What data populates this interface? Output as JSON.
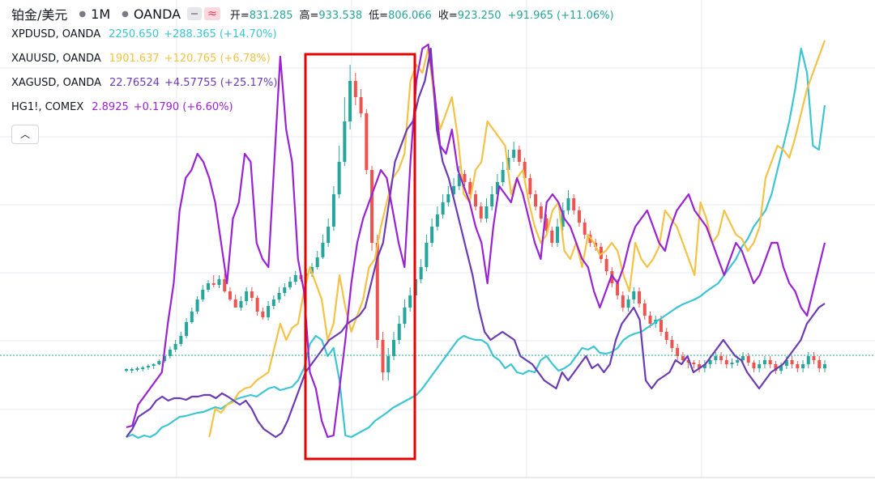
{
  "header": {
    "symbol": "铂金/美元",
    "interval": "1M",
    "exchange": "OANDA",
    "approx_label": "≈",
    "ohlc": [
      {
        "label": "开=",
        "value": "831.285"
      },
      {
        "label": "高=",
        "value": "933.538"
      },
      {
        "label": "低=",
        "value": "806.066"
      },
      {
        "label": "收=",
        "value": "923.250"
      },
      {
        "label": "",
        "value": "+91.965 (+11.06%)"
      }
    ]
  },
  "series_legend": [
    {
      "name": "XPDUSD, OANDA",
      "value": "2250.650",
      "change": "+288.365 (+14.70%)",
      "color": "#3cc5d3"
    },
    {
      "name": "XAUUSD, OANDA",
      "value": "1901.637",
      "change": "+120.765 (+6.78%)",
      "color": "#f4c244"
    },
    {
      "name": "XAGUSD, OANDA",
      "value": "22.76524",
      "change": "+4.57755 (+25.17%)",
      "color": "#6a3bb5"
    },
    {
      "name": "HG1!, COMEX",
      "value": "2.8925",
      "change": "+0.1790 (+6.60%)",
      "color": "#9b22d4"
    }
  ],
  "collapse_icon": "chevron-up-icon",
  "colors": {
    "up": "#26a69a",
    "down": "#ef5350",
    "highlight_box": "#e60000",
    "price_line": "#26a69a",
    "grid": "#e6e9ef"
  },
  "chart_data": {
    "type": "line",
    "title": "铂金/美元 · 1M · OANDA",
    "grid": true,
    "candles_ohlc_series": "铂金/美元",
    "candles": [
      [
        458,
        456,
        460,
        455
      ],
      [
        458,
        456,
        461,
        454
      ],
      [
        456,
        455,
        459,
        453
      ],
      [
        456,
        454,
        459,
        452
      ],
      [
        454,
        452,
        457,
        450
      ],
      [
        452,
        450,
        456,
        449
      ],
      [
        450,
        446,
        451,
        444
      ],
      [
        446,
        440,
        448,
        437
      ],
      [
        440,
        432,
        443,
        428
      ],
      [
        432,
        425,
        435,
        420
      ],
      [
        425,
        415,
        428,
        410
      ],
      [
        415,
        398,
        418,
        393
      ],
      [
        398,
        385,
        400,
        380
      ],
      [
        385,
        370,
        388,
        366
      ],
      [
        370,
        358,
        373,
        352
      ],
      [
        358,
        350,
        361,
        346
      ],
      [
        350,
        352,
        355,
        340
      ],
      [
        352,
        345,
        356,
        340
      ],
      [
        345,
        360,
        362,
        338
      ],
      [
        360,
        370,
        372,
        355
      ],
      [
        370,
        380,
        375,
        364
      ],
      [
        380,
        372,
        384,
        366
      ],
      [
        372,
        360,
        377,
        355
      ],
      [
        360,
        368,
        372,
        355
      ],
      [
        368,
        385,
        390,
        365
      ],
      [
        385,
        392,
        395,
        380
      ],
      [
        392,
        378,
        396,
        372
      ],
      [
        378,
        370,
        382,
        365
      ],
      [
        370,
        362,
        374,
        355
      ],
      [
        362,
        355,
        366,
        350
      ],
      [
        355,
        348,
        358,
        342
      ],
      [
        348,
        340,
        352,
        335
      ],
      [
        340,
        345,
        348,
        338
      ],
      [
        345,
        338,
        350,
        332
      ],
      [
        338,
        330,
        342,
        325
      ],
      [
        330,
        318,
        333,
        310
      ],
      [
        318,
        300,
        320,
        290
      ],
      [
        300,
        280,
        305,
        270
      ],
      [
        280,
        240,
        285,
        230
      ],
      [
        240,
        200,
        245,
        180
      ],
      [
        200,
        150,
        205,
        120
      ],
      [
        150,
        100,
        160,
        80
      ],
      [
        100,
        120,
        130,
        90
      ],
      [
        120,
        140,
        145,
        110
      ],
      [
        140,
        210,
        215,
        135
      ],
      [
        210,
        300,
        310,
        205
      ],
      [
        300,
        420,
        430,
        290
      ],
      [
        420,
        460,
        470,
        410
      ],
      [
        460,
        440,
        470,
        430
      ],
      [
        440,
        420,
        445,
        410
      ],
      [
        420,
        400,
        425,
        390
      ],
      [
        400,
        380,
        405,
        370
      ],
      [
        380,
        365,
        385,
        355
      ],
      [
        365,
        345,
        370,
        335
      ],
      [
        345,
        330,
        350,
        320
      ],
      [
        330,
        300,
        335,
        290
      ],
      [
        300,
        280,
        305,
        270
      ],
      [
        280,
        265,
        285,
        255
      ],
      [
        265,
        250,
        270,
        240
      ],
      [
        250,
        240,
        255,
        230
      ],
      [
        240,
        230,
        245,
        220
      ],
      [
        230,
        215,
        235,
        205
      ],
      [
        215,
        225,
        230,
        210
      ],
      [
        225,
        240,
        245,
        220
      ],
      [
        240,
        255,
        260,
        235
      ],
      [
        255,
        270,
        275,
        250
      ],
      [
        270,
        255,
        275,
        245
      ],
      [
        255,
        240,
        260,
        230
      ],
      [
        240,
        225,
        245,
        215
      ],
      [
        225,
        210,
        230,
        200
      ],
      [
        210,
        195,
        215,
        185
      ],
      [
        195,
        185,
        200,
        175
      ],
      [
        185,
        200,
        205,
        180
      ],
      [
        200,
        220,
        225,
        195
      ],
      [
        220,
        240,
        245,
        215
      ],
      [
        240,
        255,
        260,
        235
      ],
      [
        255,
        270,
        275,
        250
      ],
      [
        270,
        285,
        290,
        265
      ],
      [
        285,
        300,
        305,
        280
      ],
      [
        300,
        280,
        305,
        270
      ],
      [
        280,
        260,
        285,
        250
      ],
      [
        260,
        245,
        265,
        235
      ],
      [
        245,
        260,
        265,
        240
      ],
      [
        260,
        275,
        280,
        255
      ],
      [
        275,
        290,
        295,
        270
      ],
      [
        290,
        300,
        305,
        285
      ],
      [
        300,
        305,
        310,
        295
      ],
      [
        305,
        320,
        325,
        300
      ],
      [
        320,
        335,
        340,
        315
      ],
      [
        335,
        350,
        355,
        330
      ],
      [
        350,
        365,
        370,
        345
      ],
      [
        365,
        380,
        385,
        360
      ],
      [
        380,
        370,
        385,
        365
      ],
      [
        370,
        360,
        375,
        355
      ],
      [
        360,
        375,
        380,
        355
      ],
      [
        375,
        390,
        395,
        370
      ],
      [
        390,
        400,
        405,
        385
      ],
      [
        400,
        395,
        405,
        390
      ],
      [
        395,
        410,
        415,
        390
      ],
      [
        410,
        420,
        425,
        405
      ],
      [
        420,
        430,
        435,
        415
      ],
      [
        430,
        440,
        445,
        425
      ],
      [
        440,
        445,
        450,
        435
      ],
      [
        445,
        448,
        455,
        440
      ],
      [
        448,
        450,
        455,
        445
      ],
      [
        450,
        455,
        460,
        445
      ],
      [
        455,
        450,
        460,
        445
      ],
      [
        450,
        445,
        455,
        440
      ],
      [
        445,
        440,
        450,
        435
      ],
      [
        440,
        445,
        450,
        435
      ],
      [
        445,
        450,
        455,
        440
      ],
      [
        450,
        448,
        455,
        443
      ],
      [
        448,
        445,
        452,
        440
      ],
      [
        445,
        440,
        450,
        435
      ],
      [
        440,
        448,
        452,
        436
      ],
      [
        448,
        455,
        460,
        445
      ],
      [
        455,
        450,
        460,
        445
      ],
      [
        450,
        445,
        455,
        440
      ],
      [
        445,
        450,
        455,
        440
      ],
      [
        450,
        458,
        462,
        446
      ],
      [
        458,
        452,
        462,
        448
      ],
      [
        452,
        445,
        456,
        440
      ],
      [
        445,
        450,
        455,
        440
      ],
      [
        450,
        455,
        460,
        446
      ],
      [
        455,
        450,
        460,
        445
      ],
      [
        450,
        440,
        455,
        435
      ],
      [
        440,
        445,
        450,
        435
      ],
      [
        445,
        455,
        460,
        440
      ],
      [
        455,
        450,
        460,
        445
      ]
    ],
    "series": [
      {
        "name": "XPDUSD, OANDA",
        "values": [
          540,
          537,
          541,
          538,
          540,
          536,
          528,
          525,
          520,
          515,
          514,
          512,
          510,
          509,
          506,
          503,
          505,
          500,
          495,
          492,
          490,
          488,
          490,
          485,
          480,
          478,
          482,
          480,
          478,
          470,
          455,
          425,
          415,
          420,
          440,
          430,
          470,
          538,
          540,
          536,
          532,
          528,
          520,
          515,
          510,
          504,
          500,
          496,
          492,
          488,
          480,
          470,
          460,
          450,
          440,
          430,
          420,
          415,
          418,
          420,
          420,
          425,
          440,
          445,
          455,
          450,
          460,
          462,
          458,
          460,
          445,
          440,
          450,
          458,
          455,
          450,
          440,
          430,
          432,
          428,
          436,
          437,
          435,
          430,
          420,
          415,
          412,
          410,
          405,
          400,
          395,
          390,
          385,
          380,
          376,
          373,
          370,
          366,
          360,
          355,
          350,
          340,
          330,
          320,
          305,
          295,
          280,
          270,
          260,
          240,
          210,
          180,
          150,
          110,
          60,
          90,
          180,
          185,
          130
        ]
      },
      {
        "name": "XAUUSD, OANDA",
        "values": [
          null,
          null,
          null,
          null,
          null,
          null,
          null,
          null,
          null,
          null,
          null,
          null,
          null,
          null,
          540,
          505,
          510,
          500,
          497,
          485,
          480,
          478,
          470,
          465,
          460,
          430,
          400,
          420,
          405,
          400,
          360,
          330,
          350,
          370,
          420,
          400,
          340,
          380,
          410,
          390,
          370,
          330,
          320,
          280,
          250,
          220,
          210,
          190,
          100,
          80,
          90,
          60,
          120,
          160,
          140,
          120,
          170,
          240,
          250,
          210,
          200,
          150,
          160,
          170,
          180,
          240,
          220,
          210,
          250,
          280,
          300,
          290,
          260,
          250,
          310,
          320,
          300,
          330,
          290,
          300,
          315,
          310,
          300,
          310,
          340,
          360,
          300,
          320,
          330,
          320,
          305,
          260,
          270,
          280,
          300,
          320,
          340,
          250,
          270,
          300,
          290,
          260,
          275,
          290,
          295,
          310,
          300,
          280,
          220,
          200,
          180,
          185,
          195,
          170,
          140,
          110,
          90,
          70,
          50
        ]
      },
      {
        "name": "XAGUSD, OANDA",
        "values": [
          540,
          530,
          515,
          510,
          505,
          495,
          490,
          495,
          492,
          492,
          494,
          490,
          490,
          488,
          488,
          492,
          486,
          490,
          495,
          500,
          495,
          505,
          520,
          530,
          535,
          540,
          535,
          520,
          500,
          480,
          460,
          450,
          440,
          430,
          420,
          415,
          410,
          400,
          395,
          390,
          380,
          350,
          320,
          300,
          250,
          200,
          180,
          160,
          150,
          120,
          100,
          60,
          160,
          200,
          220,
          250,
          280,
          310,
          340,
          380,
          410,
          420,
          415,
          410,
          415,
          420,
          440,
          445,
          450,
          460,
          470,
          475,
          480,
          460,
          470,
          460,
          450,
          440,
          455,
          450,
          460,
          450,
          420,
          400,
          390,
          380,
          395,
          470,
          480,
          470,
          465,
          460,
          445,
          450,
          440,
          460,
          455,
          450,
          440,
          430,
          420,
          430,
          440,
          445,
          460,
          470,
          480,
          470,
          460,
          455,
          450,
          440,
          430,
          420,
          400,
          390,
          380,
          375
        ]
      },
      {
        "name": "HG1!, COMEX",
        "values": [
          528,
          526,
          500,
          490,
          480,
          470,
          460,
          400,
          350,
          260,
          220,
          210,
          190,
          200,
          220,
          250,
          300,
          350,
          270,
          250,
          190,
          200,
          300,
          320,
          330,
          200,
          70,
          160,
          200,
          320,
          360,
          460,
          480,
          520,
          540,
          538,
          480,
          420,
          350,
          300,
          270,
          250,
          230,
          210,
          220,
          260,
          300,
          330,
          200,
          100,
          60,
          55,
          110,
          180,
          190,
          160,
          210,
          230,
          250,
          280,
          300,
          350,
          280,
          230,
          240,
          250,
          220,
          240,
          270,
          300,
          320,
          250,
          240,
          250,
          270,
          280,
          300,
          320,
          330,
          360,
          380,
          360,
          340,
          350,
          330,
          300,
          280,
          270,
          260,
          280,
          300,
          310,
          280,
          260,
          250,
          240,
          260,
          270,
          280,
          300,
          320,
          340,
          320,
          300,
          310,
          330,
          350,
          340,
          320,
          300,
          300,
          330,
          350,
          360,
          380,
          390,
          360,
          330,
          300
        ]
      }
    ]
  }
}
